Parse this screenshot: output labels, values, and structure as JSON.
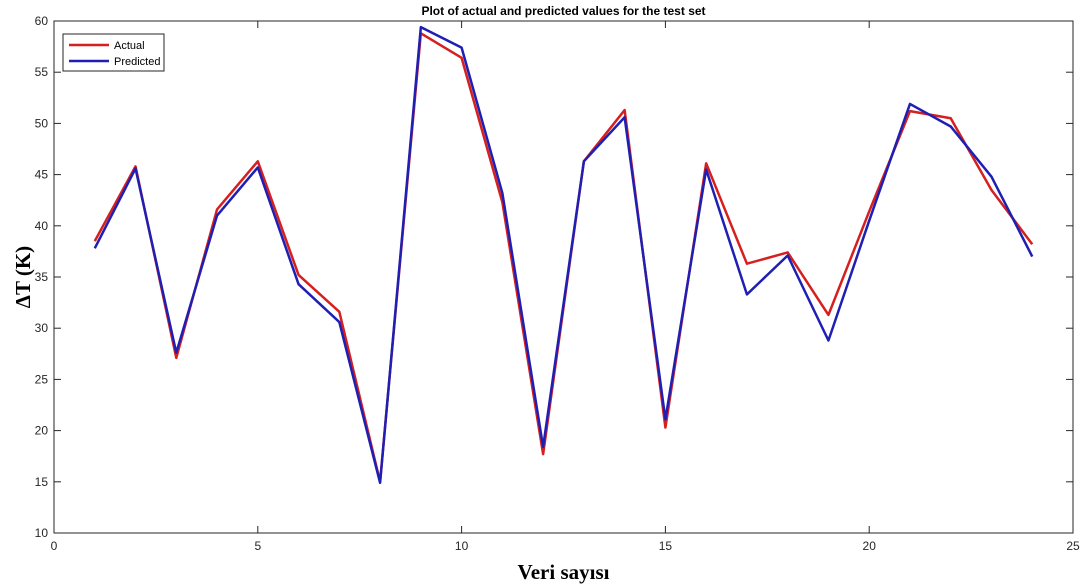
{
  "chart_data": {
    "type": "line",
    "title": "Plot of actual and predicted values for the test set",
    "xlabel": "Veri sayısı",
    "ylabel": "ΔT (K)",
    "xlim": [
      0,
      25
    ],
    "ylim": [
      10,
      60
    ],
    "xticks": [
      0,
      5,
      10,
      15,
      20,
      25
    ],
    "yticks": [
      10,
      15,
      20,
      25,
      30,
      35,
      40,
      45,
      50,
      55,
      60
    ],
    "grid": false,
    "legend_position": "top-left",
    "x": [
      1,
      2,
      3,
      4,
      5,
      6,
      7,
      8,
      9,
      10,
      11,
      12,
      13,
      14,
      15,
      16,
      17,
      18,
      19,
      20,
      21,
      22,
      23,
      24
    ],
    "series": [
      {
        "name": "Actual",
        "color": "#d62020",
        "values": [
          38.5,
          45.8,
          27.1,
          41.6,
          46.3,
          35.2,
          31.6,
          15.0,
          58.8,
          56.4,
          42.3,
          17.7,
          46.3,
          51.3,
          20.3,
          46.1,
          36.3,
          37.4,
          31.3,
          41.4,
          51.2,
          50.5,
          43.5,
          38.2
        ]
      },
      {
        "name": "Predicted",
        "color": "#1f1fb4",
        "values": [
          37.8,
          45.6,
          27.6,
          41.0,
          45.7,
          34.3,
          30.6,
          14.9,
          59.4,
          57.4,
          43.2,
          18.4,
          46.3,
          50.6,
          21.1,
          45.5,
          33.3,
          37.1,
          28.8,
          40.5,
          51.9,
          49.7,
          44.8,
          37.0
        ]
      }
    ]
  }
}
